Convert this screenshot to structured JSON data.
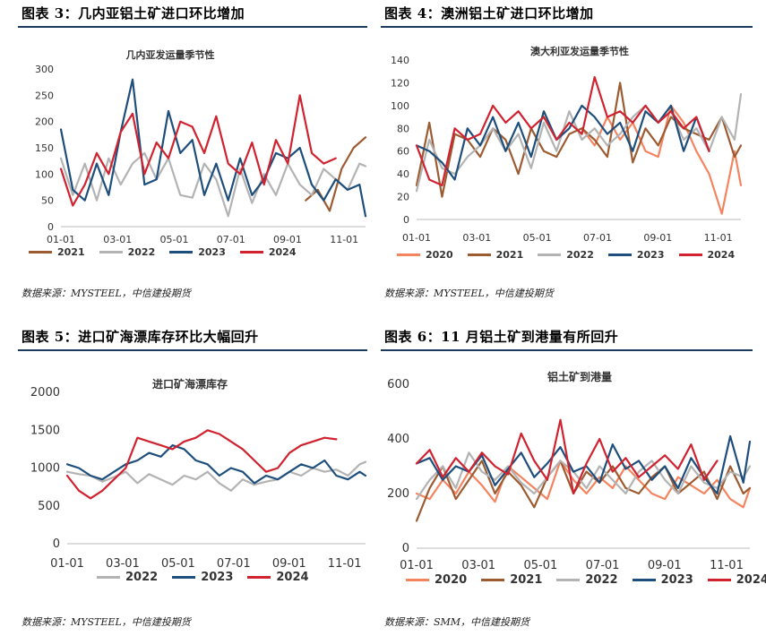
{
  "colors": {
    "2020": "#f4845f",
    "2021": "#9c5b31",
    "2022": "#b3b3b3",
    "2023": "#1d4e7c",
    "2024": "#d0222f",
    "rule": "#1c3a5e"
  },
  "panels": [
    {
      "heading": "图表 3：几内亚铝土矿进口环比增加",
      "source": "数据来源：MYSTEEL，中信建投期货",
      "chart_data": {
        "type": "line",
        "title": "几内亚发运量季节性",
        "ylim": [
          0,
          300
        ],
        "yticks": [
          "300",
          "250",
          "200",
          "150",
          "100",
          "50",
          "0"
        ],
        "xticks": [
          "01-01",
          "03-01",
          "05-01",
          "07-01",
          "09-01",
          "11-01"
        ],
        "x_unit": "week of year (1-52)",
        "series": [
          {
            "name": "2021",
            "x": [
              42,
              44,
              46,
              48,
              50,
              52
            ],
            "values": [
              50,
              70,
              30,
              110,
              150,
              170
            ]
          },
          {
            "name": "2022",
            "x": [
              1,
              3,
              5,
              7,
              9,
              11,
              13,
              15,
              17,
              19,
              21,
              23,
              25,
              27,
              29,
              31,
              33,
              35,
              37,
              39,
              41,
              43,
              45,
              47,
              49,
              51,
              52
            ],
            "values": [
              130,
              60,
              120,
              50,
              130,
              80,
              120,
              140,
              90,
              130,
              60,
              55,
              120,
              90,
              20,
              110,
              45,
              100,
              60,
              120,
              80,
              60,
              110,
              90,
              70,
              120,
              115
            ]
          },
          {
            "name": "2023",
            "x": [
              1,
              3,
              5,
              7,
              9,
              11,
              13,
              15,
              17,
              19,
              21,
              23,
              25,
              27,
              29,
              31,
              33,
              35,
              37,
              39,
              41,
              43,
              45,
              47,
              49,
              51,
              52
            ],
            "values": [
              185,
              70,
              50,
              120,
              60,
              180,
              280,
              80,
              90,
              220,
              140,
              165,
              60,
              120,
              50,
              130,
              60,
              90,
              140,
              130,
              150,
              80,
              50,
              90,
              70,
              80,
              20
            ]
          },
          {
            "name": "2024",
            "x": [
              1,
              3,
              5,
              7,
              9,
              11,
              13,
              15,
              17,
              19,
              21,
              23,
              25,
              27,
              29,
              31,
              33,
              35,
              37,
              39,
              41,
              43,
              45,
              47
            ],
            "values": [
              110,
              40,
              80,
              140,
              100,
              180,
              215,
              100,
              160,
              130,
              200,
              190,
              140,
              210,
              120,
              100,
              160,
              80,
              165,
              120,
              250,
              140,
              120,
              130
            ]
          }
        ]
      }
    },
    {
      "heading": "图表 4：澳洲铝土矿进口环比增加",
      "source": "数据来源：MYSTEEL，中信建投期货",
      "chart_data": {
        "type": "line",
        "title": "澳大利亚发运量季节性",
        "ylim": [
          0,
          140
        ],
        "yticks": [
          "140",
          "120",
          "100",
          "80",
          "60",
          "40",
          "20",
          "0"
        ],
        "xticks": [
          "01-01",
          "03-01",
          "05-01",
          "07-01",
          "09-01",
          "11-01"
        ],
        "x_unit": "week of year (1-52)",
        "series": [
          {
            "name": "2020",
            "x": [
              27,
              29,
              31,
              33,
              35,
              37,
              39,
              41,
              43,
              45,
              47,
              49,
              51,
              52
            ],
            "values": [
              80,
              65,
              90,
              70,
              85,
              60,
              55,
              100,
              85,
              60,
              40,
              5,
              60,
              30
            ]
          },
          {
            "name": "2021",
            "x": [
              1,
              3,
              5,
              7,
              9,
              11,
              13,
              15,
              17,
              19,
              21,
              23,
              25,
              27,
              29,
              31,
              33,
              35,
              37,
              39,
              41,
              43,
              45,
              47,
              49,
              51,
              52
            ],
            "values": [
              30,
              85,
              20,
              75,
              70,
              55,
              80,
              70,
              40,
              80,
              60,
              55,
              75,
              80,
              70,
              55,
              120,
              50,
              80,
              65,
              90,
              80,
              75,
              70,
              90,
              55,
              65
            ]
          },
          {
            "name": "2022",
            "x": [
              1,
              3,
              5,
              7,
              9,
              11,
              13,
              15,
              17,
              19,
              21,
              23,
              25,
              27,
              29,
              31,
              33,
              35,
              37,
              39,
              41,
              43,
              45,
              47,
              49,
              51,
              52
            ],
            "values": [
              25,
              70,
              45,
              40,
              55,
              65,
              80,
              60,
              75,
              45,
              85,
              60,
              95,
              70,
              80,
              65,
              75,
              90,
              100,
              85,
              95,
              70,
              80,
              60,
              90,
              70,
              110
            ]
          },
          {
            "name": "2023",
            "x": [
              1,
              3,
              5,
              7,
              9,
              11,
              13,
              15,
              17,
              19,
              21,
              23,
              25,
              27,
              29,
              31,
              33,
              35,
              37,
              39,
              41,
              43,
              45,
              47
            ],
            "values": [
              65,
              60,
              50,
              35,
              80,
              65,
              90,
              60,
              85,
              55,
              95,
              70,
              80,
              100,
              90,
              75,
              85,
              60,
              95,
              85,
              100,
              60,
              90,
              60
            ]
          },
          {
            "name": "2024",
            "x": [
              1,
              3,
              5,
              7,
              9,
              11,
              13,
              15,
              17,
              19,
              21,
              23,
              25,
              27,
              29,
              31,
              33,
              35,
              37,
              39,
              41,
              43,
              45,
              47
            ],
            "values": [
              65,
              35,
              30,
              80,
              70,
              75,
              100,
              85,
              95,
              80,
              90,
              70,
              85,
              75,
              125,
              90,
              95,
              85,
              100,
              85,
              95,
              80,
              90,
              60
            ]
          }
        ]
      }
    },
    {
      "heading": "图表 5：进口矿海漂库存环比大幅回升",
      "source": "数据来源：MYSTEEL，中信建投期货",
      "chart_data": {
        "type": "line",
        "title": "进口矿海漂库存",
        "ylim": [
          0,
          2000
        ],
        "yticks": [
          "2000",
          "1500",
          "1000",
          "500",
          "0"
        ],
        "xticks": [
          "01-01",
          "03-01",
          "05-01",
          "07-01",
          "09-01",
          "11-01"
        ],
        "x_unit": "week of year (1-52)",
        "series": [
          {
            "name": "2022",
            "x": [
              1,
              3,
              5,
              7,
              9,
              11,
              13,
              15,
              17,
              19,
              21,
              23,
              25,
              27,
              29,
              31,
              33,
              35,
              37,
              39,
              41,
              43,
              45,
              47,
              49,
              51,
              52
            ],
            "values": [
              950,
              920,
              900,
              820,
              880,
              950,
              800,
              920,
              850,
              780,
              900,
              850,
              950,
              800,
              700,
              850,
              780,
              820,
              850,
              950,
              900,
              1000,
              950,
              980,
              900,
              1050,
              1080
            ]
          },
          {
            "name": "2023",
            "x": [
              1,
              3,
              5,
              7,
              9,
              11,
              13,
              15,
              17,
              19,
              21,
              23,
              25,
              27,
              29,
              31,
              33,
              35,
              37,
              39,
              41,
              43,
              45,
              47,
              49,
              51,
              52
            ],
            "values": [
              1050,
              1000,
              900,
              850,
              950,
              1050,
              1100,
              1200,
              1150,
              1300,
              1250,
              1100,
              1050,
              900,
              1000,
              950,
              800,
              900,
              850,
              950,
              1050,
              1000,
              1100,
              900,
              850,
              950,
              900
            ]
          },
          {
            "name": "2024",
            "x": [
              1,
              3,
              5,
              7,
              9,
              11,
              13,
              15,
              17,
              19,
              21,
              23,
              25,
              27,
              29,
              31,
              33,
              35,
              37,
              39,
              41,
              43,
              45,
              47
            ],
            "values": [
              900,
              700,
              600,
              700,
              850,
              1000,
              1400,
              1350,
              1300,
              1250,
              1350,
              1400,
              1500,
              1450,
              1350,
              1250,
              1100,
              950,
              1000,
              1200,
              1300,
              1350,
              1400,
              1380
            ]
          }
        ]
      }
    },
    {
      "heading": "图表 6：11 月铝土矿到港量有所回升",
      "source": "数据来源：SMM，中信建投期货",
      "chart_data": {
        "type": "line",
        "title": "铝土矿到港量",
        "ylim": [
          0,
          600
        ],
        "yticks": [
          "600",
          "400",
          "200",
          "0"
        ],
        "xticks": [
          "01-01",
          "03-01",
          "05-01",
          "07-01",
          "09-01",
          "11-01"
        ],
        "x_unit": "week of year (1-52)",
        "series": [
          {
            "name": "2020",
            "x": [
              1,
              3,
              5,
              7,
              9,
              11,
              13,
              15,
              17,
              19,
              21,
              23,
              25,
              27,
              29,
              31,
              33,
              35,
              37,
              39,
              41,
              43,
              45,
              47,
              49,
              51,
              52
            ],
            "values": [
              200,
              180,
              250,
              200,
              280,
              230,
              170,
              300,
              260,
              220,
              180,
              320,
              250,
              200,
              260,
              220,
              300,
              250,
              200,
              180,
              260,
              230,
              200,
              250,
              180,
              150,
              220
            ]
          },
          {
            "name": "2021",
            "x": [
              1,
              3,
              5,
              7,
              9,
              11,
              13,
              15,
              17,
              19,
              21,
              23,
              25,
              27,
              29,
              31,
              33,
              35,
              37,
              39,
              41,
              43,
              45,
              47,
              49,
              51,
              52
            ],
            "values": [
              100,
              220,
              300,
              180,
              250,
              320,
              200,
              280,
              230,
              150,
              260,
              320,
              200,
              280,
              240,
              300,
              220,
              200,
              260,
              300,
              200,
              240,
              280,
              180,
              300,
              200,
              220
            ]
          },
          {
            "name": "2022",
            "x": [
              1,
              3,
              5,
              7,
              9,
              11,
              13,
              15,
              17,
              19,
              21,
              23,
              25,
              27,
              29,
              31,
              33,
              35,
              37,
              39,
              41,
              43,
              45,
              47,
              49,
              51,
              52
            ],
            "values": [
              180,
              250,
              300,
              220,
              350,
              280,
              250,
              300,
              240,
              200,
              260,
              320,
              280,
              220,
              300,
              250,
              200,
              280,
              320,
              250,
              200,
              300,
              240,
              220,
              280,
              260,
              300
            ]
          },
          {
            "name": "2023",
            "x": [
              1,
              3,
              5,
              7,
              9,
              11,
              13,
              15,
              17,
              19,
              21,
              23,
              25,
              27,
              29,
              31,
              33,
              35,
              37,
              39,
              41,
              43,
              45,
              47,
              49,
              51,
              52
            ],
            "values": [
              310,
              330,
              250,
              300,
              280,
              340,
              230,
              290,
              350,
              260,
              310,
              370,
              280,
              300,
              240,
              380,
              290,
              320,
              250,
              300,
              220,
              330,
              260,
              200,
              410,
              240,
              390
            ]
          },
          {
            "name": "2024",
            "x": [
              1,
              3,
              5,
              7,
              9,
              11,
              13,
              15,
              17,
              19,
              21,
              23,
              25,
              27,
              29,
              31,
              33,
              35,
              37,
              39,
              41,
              43,
              45,
              47
            ],
            "values": [
              310,
              360,
              260,
              330,
              280,
              350,
              300,
              270,
              420,
              320,
              250,
              470,
              200,
              310,
              400,
              280,
              330,
              260,
              300,
              340,
              290,
              380,
              250,
              320
            ]
          }
        ]
      }
    }
  ]
}
